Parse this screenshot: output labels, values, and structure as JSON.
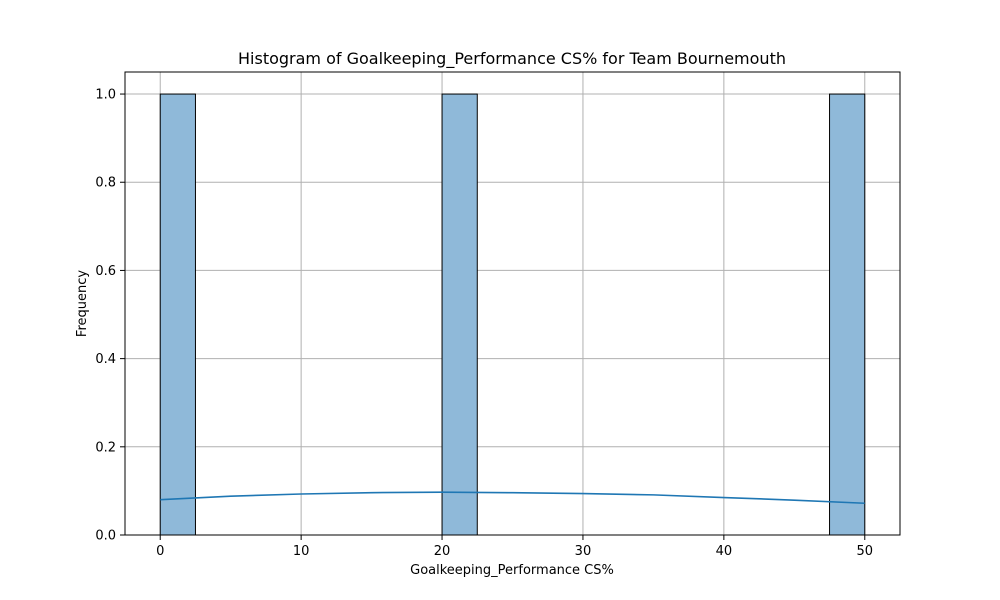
{
  "chart_data": {
    "type": "histogram",
    "title": "Histogram of Goalkeeping_Performance CS% for Team Bournemouth",
    "xlabel": "Goalkeeping_Performance CS%",
    "ylabel": "Frequency",
    "xlim": [
      -2.5,
      52.5
    ],
    "ylim": [
      0,
      1.05
    ],
    "x_ticks": [
      0,
      10,
      20,
      30,
      40,
      50
    ],
    "x_tick_labels": [
      "0",
      "10",
      "20",
      "30",
      "40",
      "50"
    ],
    "y_ticks": [
      0.0,
      0.2,
      0.4,
      0.6,
      0.8,
      1.0
    ],
    "y_tick_labels": [
      "0.0",
      "0.2",
      "0.4",
      "0.6",
      "0.8",
      "1.0"
    ],
    "grid": true,
    "bars": [
      {
        "x0": 0.0,
        "x1": 2.5,
        "count": 1
      },
      {
        "x0": 20.0,
        "x1": 22.5,
        "count": 1
      },
      {
        "x0": 47.5,
        "x1": 50.0,
        "count": 1
      }
    ],
    "kde_curve": {
      "x": [
        0,
        5,
        10,
        15,
        20,
        25,
        30,
        35,
        40,
        45,
        50
      ],
      "y": [
        0.08,
        0.088,
        0.093,
        0.096,
        0.097,
        0.096,
        0.094,
        0.091,
        0.085,
        0.079,
        0.072
      ]
    },
    "colors": {
      "bar_fill": "#8fb9d9",
      "bar_edge": "#000000",
      "kde_line": "#1f77b4",
      "grid": "#b0b0b0"
    }
  }
}
